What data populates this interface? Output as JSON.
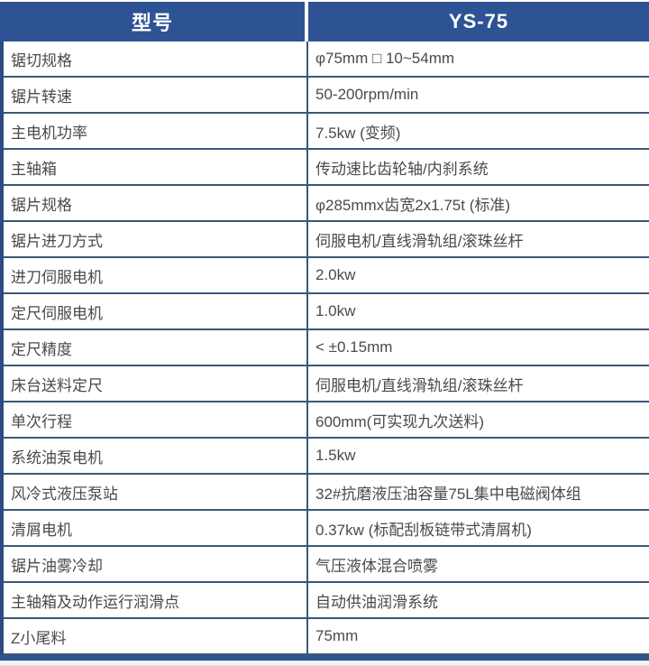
{
  "header": {
    "model_label": "型号",
    "model_value": "YS-75"
  },
  "table": {
    "columns": [
      "型号",
      "YS-75"
    ],
    "rows": [
      {
        "label": "锯切规格",
        "value": "φ75mm □ 10~54mm"
      },
      {
        "label": "锯片转速",
        "value": "50-200rpm/min"
      },
      {
        "label": "主电机功率",
        "value": "7.5kw (变频)"
      },
      {
        "label": "主轴箱",
        "value": "传动速比齿轮轴/内刹系统"
      },
      {
        "label": "锯片规格",
        "value": "φ285mmx齿宽2x1.75t (标准)"
      },
      {
        "label": "锯片进刀方式",
        "value": "伺服电机/直线滑轨组/滚珠丝杆"
      },
      {
        "label": "进刀伺服电机",
        "value": "2.0kw"
      },
      {
        "label": "定尺伺服电机",
        "value": "1.0kw"
      },
      {
        "label": "定尺精度",
        "value": "< ±0.15mm"
      },
      {
        "label": "床台送料定尺",
        "value": "伺服电机/直线滑轨组/滚珠丝杆"
      },
      {
        "label": "单次行程",
        "value": "600mm(可实现九次送料)"
      },
      {
        "label": "系统油泵电机",
        "value": "1.5kw"
      },
      {
        "label": "风冷式液压泵站",
        "value": "32#抗磨液压油容量75L集中电磁阀体组"
      },
      {
        "label": "清屑电机",
        "value": "0.37kw (标配刮板链带式清屑机)"
      },
      {
        "label": "锯片油雾冷却",
        "value": "气压液体混合喷雾"
      },
      {
        "label": "主轴箱及动作运行润滑点",
        "value": "自动供油润滑系统"
      },
      {
        "label": "Z小尾料",
        "value": "75mm"
      }
    ]
  },
  "colors": {
    "header_bg": "#2e5395",
    "row_border": "#3a5878",
    "left_border": "#2b4c7e",
    "bottom_border": "#2f5490",
    "body_text": "#4a4a4a",
    "header_text": "#ffffff"
  }
}
